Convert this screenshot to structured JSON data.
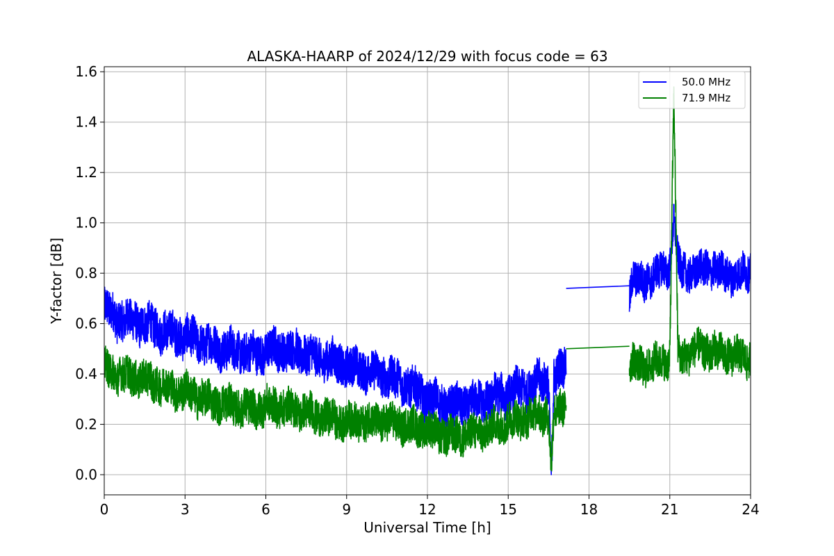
{
  "chart_data": {
    "type": "line",
    "title": "ALASKA-HAARP of 2024/12/29 with focus code = 63",
    "xlabel": "Universal Time [h]",
    "ylabel": "Y-factor [dB]",
    "xlim": [
      0,
      24
    ],
    "ylim": [
      -0.08,
      1.62
    ],
    "xticks": [
      0,
      3,
      6,
      9,
      12,
      15,
      18,
      21,
      24
    ],
    "xtick_labels": [
      "0",
      "3",
      "6",
      "9",
      "12",
      "15",
      "18",
      "21",
      "24"
    ],
    "yticks": [
      0.0,
      0.2,
      0.4,
      0.6,
      0.8,
      1.0,
      1.2,
      1.4,
      1.6
    ],
    "ytick_labels": [
      "0.0",
      "0.2",
      "0.4",
      "0.6",
      "0.8",
      "1.0",
      "1.2",
      "1.4",
      "1.6"
    ],
    "grid": true,
    "legend_position": "top-right",
    "series": [
      {
        "name": "50.0 MHz",
        "color": "#0000ff",
        "segments": [
          {
            "x": [
              0.0,
              0.5,
              1.0,
              1.5,
              2.0,
              2.5,
              3.0,
              3.5,
              4.0,
              4.5,
              5.0,
              5.5,
              6.0,
              6.5,
              7.0,
              7.5,
              8.0,
              8.5,
              9.0,
              9.5,
              10.0,
              10.5,
              11.0,
              11.5,
              12.0,
              12.5,
              13.0,
              13.5,
              14.0,
              14.5,
              15.0,
              15.5,
              16.0,
              16.5,
              16.6,
              16.7,
              17.0,
              17.15
            ],
            "y": [
              0.66,
              0.62,
              0.61,
              0.6,
              0.58,
              0.56,
              0.55,
              0.53,
              0.51,
              0.5,
              0.49,
              0.48,
              0.49,
              0.5,
              0.49,
              0.48,
              0.46,
              0.45,
              0.43,
              0.42,
              0.41,
              0.39,
              0.37,
              0.34,
              0.3,
              0.28,
              0.27,
              0.28,
              0.29,
              0.31,
              0.32,
              0.34,
              0.36,
              0.38,
              0.0,
              0.38,
              0.42,
              0.46
            ],
            "noise": 0.1
          },
          {
            "x": [
              17.15,
              19.5
            ],
            "y": [
              0.74,
              0.75
            ],
            "noise": 0
          },
          {
            "x": [
              19.5,
              19.6,
              20.0,
              20.5,
              21.0,
              21.15,
              21.3,
              21.5,
              22.0,
              22.5,
              23.0,
              23.5,
              24.0
            ],
            "y": [
              0.72,
              0.78,
              0.76,
              0.8,
              0.82,
              1.03,
              0.84,
              0.8,
              0.81,
              0.82,
              0.8,
              0.79,
              0.81
            ],
            "noise": 0.09
          }
        ]
      },
      {
        "name": "71.9 MHz",
        "color": "#008000",
        "segments": [
          {
            "x": [
              0.0,
              0.5,
              1.0,
              1.5,
              2.0,
              2.5,
              3.0,
              3.5,
              4.0,
              4.5,
              5.0,
              5.5,
              6.0,
              6.5,
              7.0,
              7.5,
              8.0,
              8.5,
              9.0,
              9.5,
              10.0,
              10.5,
              11.0,
              11.5,
              12.0,
              12.5,
              13.0,
              13.5,
              14.0,
              14.5,
              15.0,
              15.5,
              16.0,
              16.5,
              16.6,
              16.7,
              17.0,
              17.15
            ],
            "y": [
              0.42,
              0.4,
              0.39,
              0.38,
              0.36,
              0.34,
              0.33,
              0.31,
              0.29,
              0.28,
              0.27,
              0.26,
              0.27,
              0.27,
              0.26,
              0.25,
              0.23,
              0.22,
              0.21,
              0.21,
              0.21,
              0.21,
              0.2,
              0.19,
              0.18,
              0.16,
              0.15,
              0.16,
              0.17,
              0.19,
              0.21,
              0.22,
              0.24,
              0.24,
              0.02,
              0.24,
              0.27,
              0.3
            ],
            "noise": 0.09
          },
          {
            "x": [
              17.15,
              19.5
            ],
            "y": [
              0.5,
              0.51
            ],
            "noise": 0
          },
          {
            "x": [
              19.5,
              19.6,
              20.0,
              20.5,
              21.0,
              21.15,
              21.3,
              21.5,
              22.0,
              22.5,
              23.0,
              23.5,
              24.0
            ],
            "y": [
              0.45,
              0.44,
              0.43,
              0.44,
              0.46,
              1.54,
              0.48,
              0.47,
              0.5,
              0.49,
              0.48,
              0.47,
              0.46
            ],
            "noise": 0.09
          }
        ]
      }
    ]
  }
}
